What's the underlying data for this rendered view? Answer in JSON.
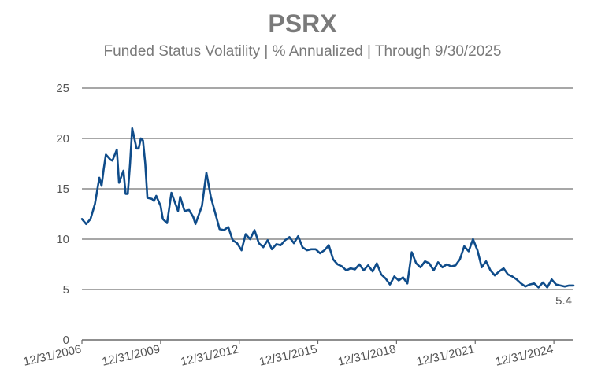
{
  "chart_data": {
    "type": "line",
    "title": "PSRX",
    "subtitle": "Funded Status Volatility | % Annualized | Through 9/30/2025",
    "xlabel": "",
    "ylabel": "",
    "ylim": [
      0,
      25
    ],
    "yticks": [
      0,
      5,
      10,
      15,
      20,
      25
    ],
    "xlim": [
      "2006-12-31",
      "2025-09-30"
    ],
    "xticks": [
      "12/31/2006",
      "12/31/2009",
      "12/31/2012",
      "12/31/2015",
      "12/31/2018",
      "12/31/2021",
      "12/31/2024"
    ],
    "grid": true,
    "line_color": "#0f4c8a",
    "grid_color": "#8a8a8a",
    "last_value_label": "5.4",
    "series": [
      {
        "x": [
          "2006-12-31",
          "2007-02-28",
          "2007-04-30",
          "2007-06-30",
          "2007-08-31",
          "2007-09-30",
          "2007-10-31",
          "2007-11-30",
          "2008-01-31",
          "2008-02-29",
          "2008-04-30",
          "2008-05-31",
          "2008-07-31",
          "2008-08-31",
          "2008-09-30",
          "2008-10-31",
          "2008-11-30",
          "2009-01-31",
          "2009-02-28",
          "2009-03-31",
          "2009-04-30",
          "2009-05-31",
          "2009-06-30",
          "2009-08-31",
          "2009-09-30",
          "2009-10-31",
          "2009-12-31",
          "2010-01-31",
          "2010-03-31",
          "2010-05-31",
          "2010-06-30",
          "2010-08-31",
          "2010-09-30",
          "2010-11-30",
          "2011-01-31",
          "2011-03-31",
          "2011-04-30",
          "2011-06-30",
          "2011-07-31",
          "2011-09-30",
          "2011-11-30",
          "2012-01-31",
          "2012-03-31",
          "2012-05-31",
          "2012-07-31",
          "2012-09-30",
          "2012-11-30",
          "2013-01-31",
          "2013-03-31",
          "2013-05-31",
          "2013-07-31",
          "2013-09-30",
          "2013-11-30",
          "2014-01-31",
          "2014-03-31",
          "2014-05-31",
          "2014-07-31",
          "2014-09-30",
          "2014-11-30",
          "2015-01-31",
          "2015-03-31",
          "2015-05-31",
          "2015-07-31",
          "2015-09-30",
          "2015-11-30",
          "2016-01-31",
          "2016-03-31",
          "2016-05-31",
          "2016-07-31",
          "2016-09-30",
          "2016-11-30",
          "2017-01-31",
          "2017-03-31",
          "2017-05-31",
          "2017-07-31",
          "2017-09-30",
          "2017-11-30",
          "2018-01-31",
          "2018-03-31",
          "2018-05-31",
          "2018-07-31",
          "2018-09-30",
          "2018-11-30",
          "2019-01-31",
          "2019-03-31",
          "2019-05-31",
          "2019-07-31",
          "2019-09-30",
          "2019-11-30",
          "2020-01-31",
          "2020-03-31",
          "2020-05-31",
          "2020-07-31",
          "2020-09-30",
          "2020-11-30",
          "2021-01-31",
          "2021-03-31",
          "2021-05-31",
          "2021-07-31",
          "2021-09-30",
          "2021-11-30",
          "2022-01-31",
          "2022-03-31",
          "2022-05-31",
          "2022-07-31",
          "2022-09-30",
          "2022-11-30",
          "2023-01-31",
          "2023-03-31",
          "2023-05-31",
          "2023-07-31",
          "2023-09-30",
          "2023-11-30",
          "2024-01-31",
          "2024-03-31",
          "2024-05-31",
          "2024-07-31",
          "2024-09-30",
          "2024-11-30",
          "2025-01-31",
          "2025-03-31",
          "2025-05-31",
          "2025-07-31",
          "2025-09-30"
        ],
        "values": [
          12.0,
          11.5,
          12.0,
          13.5,
          16.1,
          15.3,
          17.0,
          18.4,
          17.9,
          17.8,
          18.9,
          15.6,
          16.8,
          14.5,
          14.5,
          17.5,
          21.0,
          19.0,
          19.0,
          20.0,
          19.8,
          17.5,
          14.1,
          14.0,
          13.8,
          14.3,
          13.3,
          12.0,
          11.6,
          14.6,
          14.0,
          12.8,
          14.2,
          12.8,
          12.9,
          12.2,
          11.5,
          12.7,
          13.3,
          16.6,
          14.2,
          12.6,
          11.0,
          10.9,
          11.2,
          9.9,
          9.6,
          8.9,
          10.5,
          10.0,
          10.9,
          9.6,
          9.2,
          9.9,
          9.0,
          9.5,
          9.4,
          9.9,
          10.2,
          9.6,
          10.3,
          9.2,
          8.9,
          9.0,
          9.0,
          8.6,
          8.9,
          9.4,
          8.0,
          7.5,
          7.3,
          6.9,
          7.1,
          7.0,
          7.5,
          6.9,
          7.4,
          6.8,
          7.6,
          6.5,
          6.1,
          5.5,
          6.3,
          5.9,
          6.2,
          5.6,
          8.7,
          7.6,
          7.2,
          7.8,
          7.6,
          6.9,
          7.7,
          7.2,
          7.5,
          7.3,
          7.4,
          8.0,
          9.3,
          8.8,
          10.0,
          8.9,
          7.2,
          7.8,
          6.9,
          6.4,
          6.8,
          7.1,
          6.5,
          6.3,
          6.0,
          5.6,
          5.3,
          5.5,
          5.6,
          5.2,
          5.7,
          5.2,
          6.0,
          5.5,
          5.4,
          5.3,
          5.4,
          5.4
        ]
      }
    ]
  }
}
